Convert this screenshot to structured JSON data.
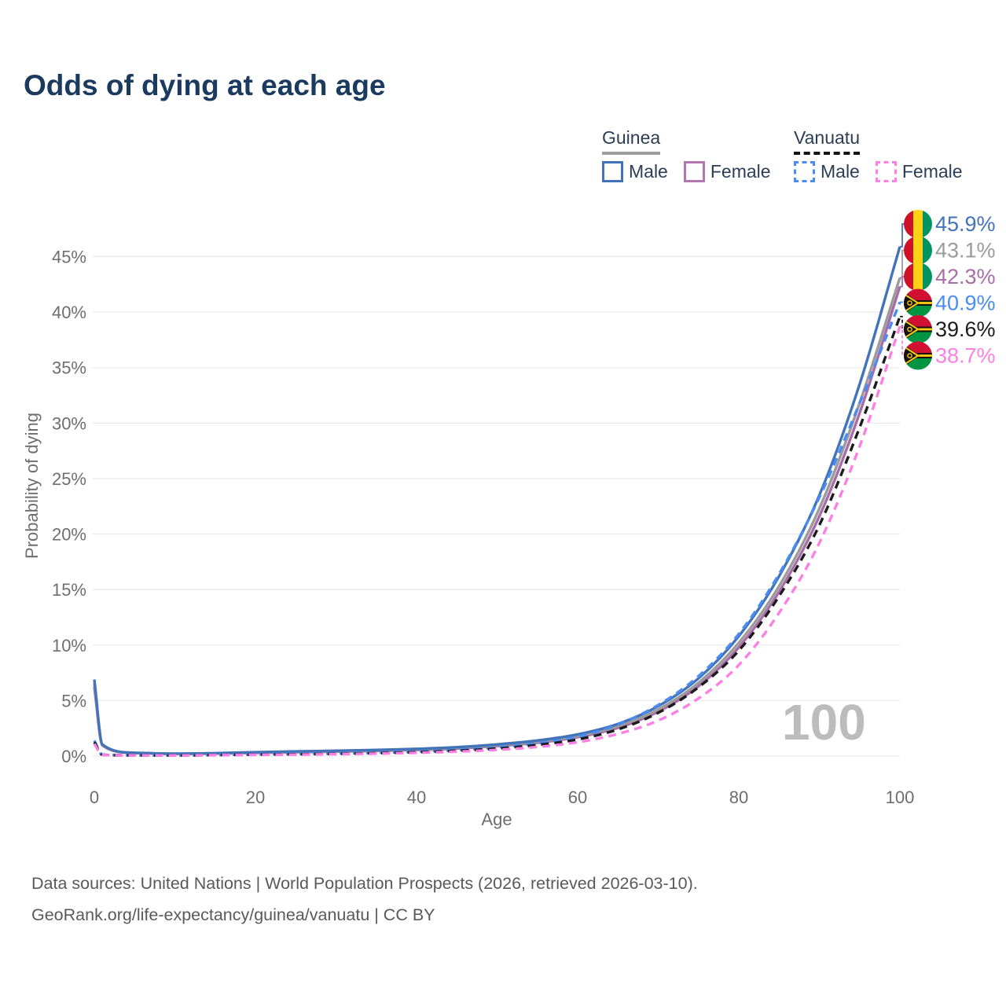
{
  "title": "Odds of dying at each age",
  "watermark": "100",
  "legend": {
    "groups": [
      {
        "name": "Guinea",
        "line_style": "solid",
        "underline_color": "#9e9e9e",
        "items": [
          {
            "label": "Male",
            "color": "#4273b9"
          },
          {
            "label": "Female",
            "color": "#b277af"
          }
        ]
      },
      {
        "name": "Vanuatu",
        "line_style": "dashed",
        "underline_color": "#141414",
        "items": [
          {
            "label": "Male",
            "color": "#4a8cf2"
          },
          {
            "label": "Female",
            "color": "#fb80e3"
          }
        ]
      }
    ]
  },
  "footer": {
    "line1": "Data sources: United Nations | World Population Prospects (2026, retrieved 2026-03-10).",
    "line2": "GeoRank.org/life-expectancy/guinea/vanuatu | CC BY"
  },
  "chart_data": {
    "type": "line",
    "title": "Odds of dying at each age",
    "xlabel": "Age",
    "ylabel": "Probability of dying",
    "xlim": [
      0,
      100
    ],
    "ylim": [
      0,
      47.5
    ],
    "x_ticks": [
      0,
      20,
      40,
      60,
      80,
      100
    ],
    "y_ticks": [
      0,
      5,
      10,
      15,
      20,
      25,
      30,
      35,
      40,
      45
    ],
    "y_tick_suffix": "%",
    "grid": "horizontal",
    "legend_position": "top-right",
    "x": [
      0,
      1,
      5,
      10,
      15,
      20,
      25,
      30,
      35,
      40,
      45,
      50,
      55,
      60,
      65,
      70,
      75,
      80,
      85,
      90,
      95,
      100
    ],
    "series": [
      {
        "name": "Guinea Male",
        "country": "Guinea",
        "sex": "Male",
        "color": "#4273b9",
        "dash": false,
        "flag": "guinea",
        "end_value": 45.9,
        "end_label": "45.9%",
        "values": [
          6.9,
          1.05,
          0.3,
          0.22,
          0.26,
          0.35,
          0.42,
          0.48,
          0.55,
          0.65,
          0.8,
          1.05,
          1.4,
          1.95,
          2.9,
          4.5,
          7.0,
          10.8,
          16.2,
          23.5,
          33.5,
          45.9
        ]
      },
      {
        "name": "Guinea Both sexes",
        "country": "Guinea",
        "sex": "Both",
        "color": "#9b9b9b",
        "dash": false,
        "flag": "guinea",
        "end_value": 43.1,
        "end_label": "43.1%",
        "values": [
          6.55,
          1.0,
          0.29,
          0.21,
          0.24,
          0.32,
          0.38,
          0.44,
          0.5,
          0.6,
          0.74,
          0.97,
          1.3,
          1.8,
          2.7,
          4.2,
          6.6,
          10.2,
          15.3,
          22.3,
          31.8,
          43.1
        ]
      },
      {
        "name": "Guinea Female",
        "country": "Guinea",
        "sex": "Female",
        "color": "#a96ca9",
        "dash": false,
        "flag": "guinea",
        "end_value": 42.3,
        "end_label": "42.3%",
        "values": [
          6.2,
          0.95,
          0.28,
          0.2,
          0.22,
          0.29,
          0.34,
          0.4,
          0.46,
          0.55,
          0.68,
          0.9,
          1.2,
          1.7,
          2.55,
          4.0,
          6.3,
          9.8,
          14.8,
          21.6,
          30.9,
          42.3
        ]
      },
      {
        "name": "Vanuatu Male",
        "country": "Vanuatu",
        "sex": "Male",
        "color": "#4a8cf2",
        "dash": true,
        "flag": "vanuatu",
        "end_value": 40.9,
        "end_label": "40.9%",
        "values": [
          1.4,
          0.12,
          0.07,
          0.06,
          0.1,
          0.15,
          0.19,
          0.24,
          0.3,
          0.4,
          0.55,
          0.78,
          1.15,
          1.75,
          2.85,
          4.6,
          7.2,
          11.0,
          16.4,
          23.3,
          31.8,
          40.9
        ]
      },
      {
        "name": "Vanuatu Both sexes",
        "country": "Vanuatu",
        "sex": "Both",
        "color": "#1c1c1c",
        "dash": true,
        "flag": "vanuatu",
        "end_value": 39.6,
        "end_label": "39.6%",
        "values": [
          1.25,
          0.11,
          0.065,
          0.055,
          0.09,
          0.13,
          0.16,
          0.2,
          0.26,
          0.35,
          0.48,
          0.68,
          1.0,
          1.5,
          2.4,
          3.9,
          6.2,
          9.5,
          14.4,
          20.8,
          29.6,
          39.6
        ]
      },
      {
        "name": "Vanuatu Female",
        "country": "Vanuatu",
        "sex": "Female",
        "color": "#fb80e3",
        "dash": true,
        "flag": "vanuatu",
        "end_value": 38.7,
        "end_label": "38.7%",
        "values": [
          1.1,
          0.1,
          0.06,
          0.05,
          0.08,
          0.11,
          0.13,
          0.17,
          0.22,
          0.29,
          0.4,
          0.56,
          0.82,
          1.25,
          2.0,
          3.2,
          5.2,
          8.2,
          12.9,
          19.2,
          27.9,
          38.7
        ]
      }
    ],
    "flag_colors": {
      "guinea": {
        "red": "#ce1126",
        "yellow": "#fcd116",
        "green": "#009460"
      },
      "vanuatu": {
        "red": "#d21034",
        "green": "#009543",
        "black": "#141414",
        "yellow": "#fdce12"
      }
    }
  }
}
